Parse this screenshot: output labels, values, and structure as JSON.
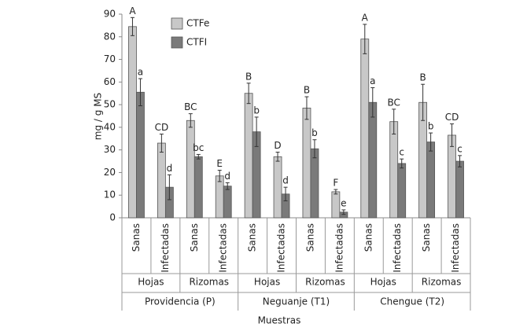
{
  "chart_data": {
    "type": "bar",
    "x_label": "Muestras",
    "y_label": "mg / g MS",
    "categories": [
      "Sanas",
      "Infectadas",
      "Sanas",
      "Infectadas",
      "Sanas",
      "Infectadas",
      "Sanas",
      "Infectadas",
      "Sanas",
      "Infectadas",
      "Sanas",
      "Infectadas"
    ],
    "subgroups": [
      "Hojas",
      "Rizomas",
      "Hojas",
      "Rizomas",
      "Hojas",
      "Rizomas"
    ],
    "groups": [
      "Providencia (P)",
      "Neguanje (T1)",
      "Chengue (T2)"
    ],
    "series": [
      {
        "name": "CTFe",
        "color": "#c8c8c8",
        "values": [
          84.5,
          33,
          43,
          18.5,
          55,
          27,
          48.5,
          11.5,
          79,
          42.5,
          51,
          36.5
        ],
        "errors": [
          4,
          4,
          3,
          2.5,
          4.5,
          2,
          5,
          1,
          6.5,
          5.5,
          8,
          5
        ],
        "letters": [
          "A",
          "CD",
          "BC",
          "E",
          "B",
          "D",
          "B",
          "F",
          "A",
          "BC",
          "B",
          "CD"
        ]
      },
      {
        "name": "CTFI",
        "color": "#7a7a7a",
        "values": [
          55.5,
          13.5,
          27,
          14,
          38,
          10.5,
          30.5,
          2.5,
          51,
          24,
          33.5,
          25
        ],
        "errors": [
          6,
          5.5,
          1,
          1.5,
          6.5,
          3,
          4,
          1,
          6.5,
          2,
          4,
          2.5
        ],
        "letters": [
          "a",
          "d",
          "bc",
          "d",
          "b",
          "d",
          "b",
          "e",
          "a",
          "c",
          "b",
          "c"
        ]
      }
    ],
    "ylim": [
      0,
      90
    ],
    "yticks": [
      0,
      10,
      20,
      30,
      40,
      50,
      60,
      70,
      80,
      90
    ],
    "grid": false,
    "legend": "top-left"
  }
}
